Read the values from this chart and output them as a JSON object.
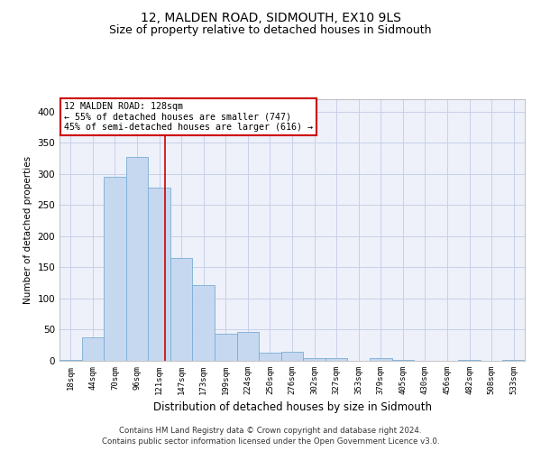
{
  "title": "12, MALDEN ROAD, SIDMOUTH, EX10 9LS",
  "subtitle": "Size of property relative to detached houses in Sidmouth",
  "xlabel": "Distribution of detached houses by size in Sidmouth",
  "ylabel": "Number of detached properties",
  "categories": [
    "18sqm",
    "44sqm",
    "70sqm",
    "96sqm",
    "121sqm",
    "147sqm",
    "173sqm",
    "199sqm",
    "224sqm",
    "250sqm",
    "276sqm",
    "302sqm",
    "327sqm",
    "353sqm",
    "379sqm",
    "405sqm",
    "430sqm",
    "456sqm",
    "482sqm",
    "508sqm",
    "533sqm"
  ],
  "values": [
    2,
    38,
    295,
    328,
    278,
    165,
    122,
    44,
    46,
    13,
    14,
    4,
    5,
    0,
    5,
    1,
    0,
    0,
    2,
    0,
    1
  ],
  "bar_color": "#c5d8f0",
  "bar_edge_color": "#7aadd4",
  "annotation_text": "12 MALDEN ROAD: 128sqm\n← 55% of detached houses are smaller (747)\n45% of semi-detached houses are larger (616) →",
  "annotation_box_color": "#ffffff",
  "annotation_box_edge": "#cc0000",
  "highlight_line_color": "#cc0000",
  "ylim": [
    0,
    420
  ],
  "yticks": [
    0,
    50,
    100,
    150,
    200,
    250,
    300,
    350,
    400
  ],
  "grid_color": "#c8d0e8",
  "background_color": "#eef1fa",
  "footer_line1": "Contains HM Land Registry data © Crown copyright and database right 2024.",
  "footer_line2": "Contains public sector information licensed under the Open Government Licence v3.0.",
  "title_fontsize": 10,
  "subtitle_fontsize": 9
}
